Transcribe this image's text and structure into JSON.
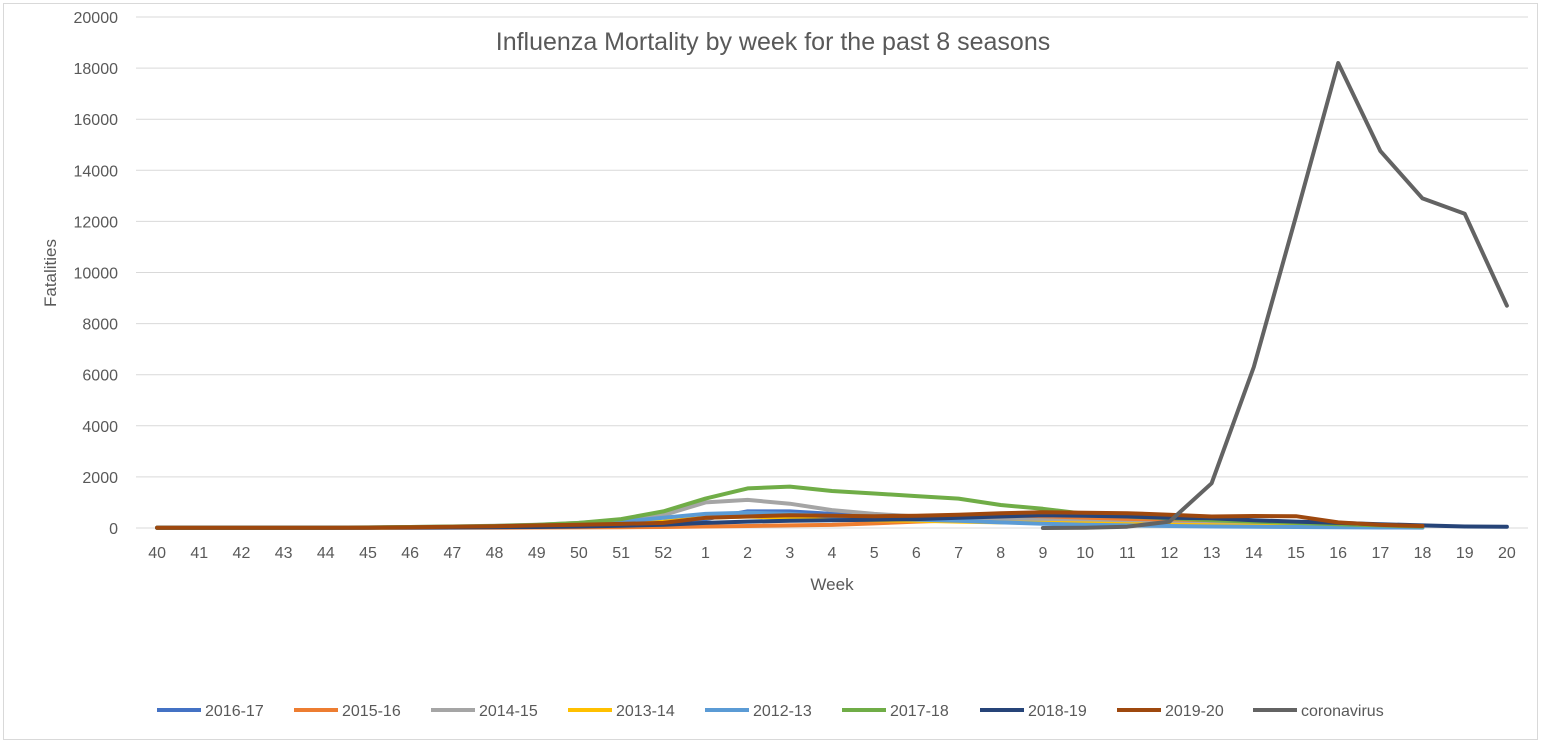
{
  "chart_data": {
    "type": "line",
    "title": "Influenza Mortality by week for the past 8 seasons",
    "xlabel": "Week",
    "ylabel": "Fatalities",
    "ylim": [
      0,
      20000
    ],
    "yticks": [
      "0",
      "2000",
      "4000",
      "6000",
      "8000",
      "10000",
      "12000",
      "14000",
      "16000",
      "18000",
      "20000"
    ],
    "grid": true,
    "legend_position": "bottom",
    "categories": [
      "40",
      "41",
      "42",
      "43",
      "44",
      "45",
      "46",
      "47",
      "48",
      "49",
      "50",
      "51",
      "52",
      "1",
      "2",
      "3",
      "4",
      "5",
      "6",
      "7",
      "8",
      "9",
      "10",
      "11",
      "12",
      "13",
      "14",
      "15",
      "16",
      "17",
      "18",
      "19",
      "20"
    ],
    "series": [
      {
        "name": "2016-17",
        "color": "#4472c4",
        "values": [
          10,
          10,
          10,
          10,
          10,
          15,
          20,
          25,
          30,
          40,
          60,
          80,
          120,
          350,
          650,
          650,
          550,
          450,
          400,
          350,
          300,
          250,
          220,
          200,
          180,
          160,
          140,
          120,
          100,
          80,
          60,
          null,
          null
        ]
      },
      {
        "name": "2015-16",
        "color": "#ed7d31",
        "values": [
          10,
          10,
          10,
          10,
          10,
          10,
          10,
          15,
          15,
          20,
          25,
          30,
          40,
          60,
          80,
          100,
          120,
          180,
          250,
          300,
          350,
          350,
          350,
          330,
          300,
          250,
          200,
          150,
          100,
          60,
          40,
          null,
          null
        ]
      },
      {
        "name": "2014-15",
        "color": "#a5a5a5",
        "values": [
          10,
          10,
          10,
          10,
          10,
          20,
          40,
          60,
          90,
          130,
          200,
          300,
          500,
          1000,
          1100,
          950,
          700,
          550,
          450,
          400,
          350,
          300,
          250,
          200,
          180,
          150,
          120,
          100,
          80,
          60,
          40,
          null,
          null
        ]
      },
      {
        "name": "2013-14",
        "color": "#ffc000",
        "values": [
          10,
          10,
          10,
          10,
          10,
          15,
          20,
          30,
          40,
          60,
          100,
          150,
          250,
          400,
          450,
          400,
          350,
          300,
          280,
          250,
          220,
          200,
          180,
          150,
          130,
          110,
          90,
          70,
          50,
          40,
          30,
          null,
          null
        ]
      },
      {
        "name": "2012-13",
        "color": "#5b9bd5",
        "values": [
          10,
          10,
          10,
          10,
          10,
          20,
          30,
          40,
          60,
          100,
          150,
          250,
          400,
          550,
          600,
          550,
          450,
          380,
          330,
          280,
          220,
          170,
          130,
          100,
          80,
          60,
          50,
          40,
          30,
          20,
          15,
          null,
          null
        ]
      },
      {
        "name": "2017-18",
        "color": "#70ad47",
        "values": [
          10,
          10,
          10,
          10,
          15,
          25,
          40,
          60,
          80,
          120,
          200,
          350,
          650,
          1150,
          1550,
          1620,
          1450,
          1350,
          1250,
          1150,
          900,
          750,
          550,
          450,
          380,
          300,
          250,
          200,
          150,
          100,
          60,
          null,
          null
        ]
      },
      {
        "name": "2018-19",
        "color": "#264478",
        "values": [
          10,
          10,
          10,
          10,
          10,
          10,
          15,
          20,
          30,
          40,
          60,
          90,
          130,
          200,
          250,
          280,
          300,
          320,
          350,
          400,
          450,
          500,
          480,
          450,
          400,
          380,
          300,
          250,
          200,
          150,
          100,
          60,
          50
        ]
      },
      {
        "name": "2019-20",
        "color": "#9e480e",
        "values": [
          10,
          10,
          10,
          10,
          10,
          15,
          30,
          50,
          70,
          100,
          130,
          160,
          200,
          400,
          450,
          500,
          480,
          460,
          480,
          520,
          580,
          620,
          600,
          580,
          520,
          450,
          470,
          460,
          220,
          120,
          80,
          null,
          null
        ]
      },
      {
        "name": "coronavirus",
        "color": "#636363",
        "values": [
          null,
          null,
          null,
          null,
          null,
          null,
          null,
          null,
          null,
          null,
          null,
          null,
          null,
          null,
          null,
          null,
          null,
          null,
          null,
          null,
          null,
          0,
          10,
          50,
          250,
          1750,
          6300,
          12200,
          18200,
          14750,
          12900,
          12300,
          8700
        ]
      }
    ]
  }
}
